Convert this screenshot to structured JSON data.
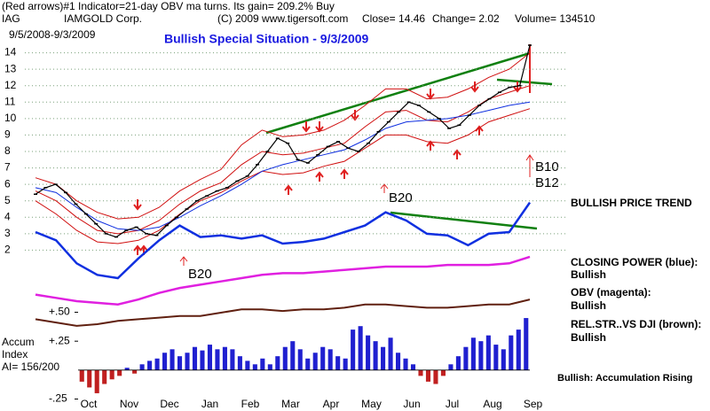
{
  "chart_data": {
    "type": "stock",
    "indicator_line": "(Red arrows)#1 Indicator=21-day OBV ma turns. Its gain= 209.2% Buy",
    "symbol": "IAG",
    "company": "IAMGOLD Corp.",
    "copyright": "(C) 2009 www.tigersoft.com",
    "close": "Close= 14.46",
    "change": "Change= 2.02",
    "volume": "Volume= 134510",
    "date_range": "9/5/2008-9/3/2009",
    "title": "Bullish Special Situation - 9/3/2009",
    "annotations": [
      "BULLISH PRICE TREND",
      "CLOSING POWER (blue):",
      "Bullish",
      "OBV (magenta):",
      "Bullish",
      "REL.STR..VS DJI (brown):",
      "Bullish",
      "Bullish: Accumulation Rising",
      "B10",
      "B12",
      "B20",
      "B20"
    ],
    "categories": [
      "Oct",
      "Nov",
      "Dec",
      "Jan",
      "Feb",
      "Mar",
      "Apr",
      "May",
      "Jun",
      "Jul",
      "Aug",
      "Sep"
    ],
    "ylim": [
      1,
      15
    ],
    "yticks": [
      2,
      3,
      4,
      5,
      6,
      7,
      8,
      9,
      10,
      11,
      12,
      13,
      14
    ],
    "grid": true,
    "price": {
      "color": "#000000",
      "values": [
        5.4,
        5.8,
        6.0,
        5.5,
        4.8,
        4.2,
        3.6,
        3.0,
        2.8,
        3.2,
        3.4,
        3.0,
        2.9,
        3.5,
        4.0,
        4.5,
        5.0,
        5.3,
        5.6,
        5.8,
        6.2,
        6.5,
        7.2,
        8.0,
        8.8,
        8.5,
        7.5,
        7.3,
        7.8,
        8.3,
        8.6,
        8.2,
        8.0,
        8.5,
        9.2,
        9.8,
        10.4,
        11.0,
        10.8,
        10.4,
        10.0,
        9.4,
        9.6,
        10.2,
        10.8,
        11.2,
        11.6,
        11.9,
        12.0,
        14.46
      ]
    },
    "overlays": [
      {
        "color": "#d01010",
        "width": 1,
        "values": [
          6.4,
          6.0,
          5.0,
          4.3,
          3.9,
          4.0,
          4.6,
          5.6,
          6.3,
          6.9,
          8.4,
          9.3,
          8.9,
          9.0,
          9.3,
          9.9,
          10.8,
          11.8,
          11.8,
          11.2,
          11.3,
          11.8,
          12.5,
          13.0,
          14.0
        ]
      },
      {
        "color": "#d01010",
        "width": 1,
        "values": [
          5.0,
          4.2,
          3.2,
          2.5,
          2.4,
          2.6,
          3.2,
          4.2,
          5.0,
          5.5,
          6.2,
          6.8,
          6.6,
          6.7,
          7.1,
          7.4,
          8.2,
          9.0,
          9.0,
          8.6,
          8.5,
          9.0,
          9.8,
          10.2,
          10.6
        ]
      },
      {
        "color": "#d01010",
        "width": 1,
        "values": [
          5.6,
          5.0,
          4.0,
          3.2,
          3.0,
          3.2,
          3.8,
          4.8,
          5.6,
          6.1,
          7.2,
          8.0,
          7.8,
          7.9,
          8.2,
          8.5,
          9.5,
          10.4,
          10.5,
          9.9,
          9.8,
          10.4,
          11.2,
          11.6,
          12.0
        ]
      },
      {
        "color": "#1030e0",
        "width": 1,
        "values": [
          5.8,
          5.5,
          4.6,
          3.8,
          3.3,
          3.2,
          3.4,
          4.0,
          4.7,
          5.3,
          6.0,
          6.8,
          7.2,
          7.5,
          7.8,
          8.1,
          8.7,
          9.4,
          9.8,
          9.9,
          10.0,
          10.2,
          10.5,
          10.8,
          11.0
        ]
      },
      {
        "color": "#1030e0",
        "width": 2.5,
        "values": [
          3.1,
          2.6,
          1.2,
          0.5,
          0.3,
          1.5,
          2.6,
          3.5,
          2.8,
          2.9,
          2.7,
          2.9,
          2.4,
          2.5,
          2.7,
          3.1,
          3.5,
          4.3,
          3.8,
          3.0,
          2.9,
          2.3,
          3.0,
          3.1,
          4.9
        ]
      },
      {
        "color": "#e020e0",
        "width": 2.5,
        "values": [
          -0.7,
          -0.9,
          -1.1,
          -1.2,
          -1.3,
          -1.0,
          -0.6,
          -0.3,
          -0.1,
          0.1,
          0.3,
          0.5,
          0.6,
          0.6,
          0.7,
          0.8,
          0.9,
          1.0,
          1.0,
          1.0,
          1.1,
          1.1,
          1.1,
          1.2,
          1.6
        ]
      },
      {
        "color": "#602010",
        "width": 2,
        "values": [
          -2.2,
          -2.4,
          -2.6,
          -2.5,
          -2.3,
          -2.2,
          -2.1,
          -2.0,
          -2.0,
          -1.8,
          -1.6,
          -1.6,
          -1.7,
          -1.6,
          -1.6,
          -1.5,
          -1.3,
          -1.3,
          -1.4,
          -1.5,
          -1.5,
          -1.4,
          -1.3,
          -1.3,
          -1.0
        ]
      }
    ],
    "accum": {
      "label": [
        "Accum",
        "Index",
        "AI= 156/200"
      ],
      "ylim": [
        -0.3,
        0.55
      ],
      "yticks": [
        {
          "value": 0.5,
          "label": "+.50"
        },
        {
          "value": 0.25,
          "label": "+.25"
        },
        {
          "value": -0.25,
          "label": "-.25"
        }
      ],
      "pos_color": "#2020d0",
      "neg_color": "#c02020",
      "values": [
        -0.1,
        -0.15,
        -0.2,
        -0.12,
        -0.08,
        -0.05,
        0.02,
        -0.03,
        0.05,
        0.08,
        0.1,
        0.15,
        0.18,
        0.12,
        0.15,
        0.2,
        0.17,
        0.22,
        0.18,
        0.2,
        0.18,
        0.12,
        0.08,
        0.05,
        0.1,
        0.05,
        0.12,
        0.2,
        0.25,
        0.18,
        0.1,
        0.15,
        0.2,
        0.18,
        0.12,
        0.1,
        0.35,
        0.38,
        0.3,
        0.25,
        0.2,
        0.28,
        0.15,
        0.1,
        0.05,
        -0.05,
        -0.1,
        -0.12,
        -0.05,
        0.05,
        0.12,
        0.2,
        0.28,
        0.25,
        0.3,
        0.22,
        0.18,
        0.3,
        0.35,
        0.45
      ]
    }
  }
}
